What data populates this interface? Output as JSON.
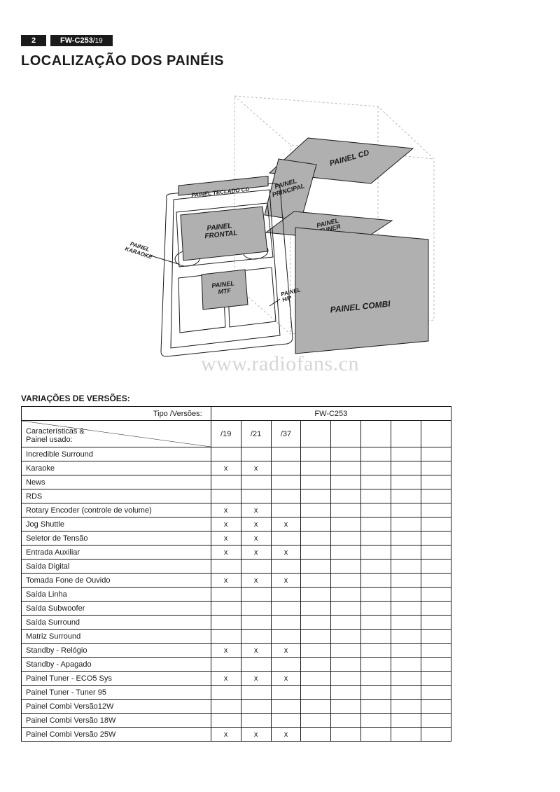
{
  "header": {
    "page_number": "2",
    "model": "FW-C253",
    "model_suffix": "/19"
  },
  "title": "LOCALIZAÇÃO DOS PAINÉIS",
  "watermark": "www.radiofans.cn",
  "diagram": {
    "type": "exploded-isometric",
    "outline_color": "#1a1a1a",
    "panel_fill": "#b0b0b0",
    "panel_stroke": "#1a1a1a",
    "labels": {
      "teclado": "PAINEL TECLADO CD",
      "principal": "PAINEL PRINCIPAL",
      "cd": "PAINEL CD",
      "frontal": "PAINEL FRONTAL",
      "tuner": "PAINEL TUNER",
      "karaoke": "PAINEL KARAOKE",
      "mtf": "PAINEL MTF",
      "hp": "PAINEL H/P",
      "combi": "PAINEL COMBI"
    }
  },
  "versions": {
    "subtitle": "VARIAÇÕES DE VERSÕES:",
    "tipo_label": "Tipo /Versões:",
    "caract_label_1": "Características &",
    "caract_label_2": "Painel usado:",
    "model_header": "FW-C253",
    "columns": [
      "/19",
      "/21",
      "/37",
      "",
      "",
      "",
      "",
      ""
    ],
    "rows": [
      {
        "label": "Incredible Surround",
        "v": [
          "",
          "",
          "",
          "",
          "",
          "",
          "",
          ""
        ]
      },
      {
        "label": "Karaoke",
        "v": [
          "x",
          "x",
          "",
          "",
          "",
          "",
          "",
          ""
        ]
      },
      {
        "label": "News",
        "v": [
          "",
          "",
          "",
          "",
          "",
          "",
          "",
          ""
        ]
      },
      {
        "label": "RDS",
        "v": [
          "",
          "",
          "",
          "",
          "",
          "",
          "",
          ""
        ]
      },
      {
        "label": "Rotary Encoder (controle de volume)",
        "v": [
          "x",
          "x",
          "",
          "",
          "",
          "",
          "",
          ""
        ]
      },
      {
        "label": "Jog Shuttle",
        "v": [
          "x",
          "x",
          "x",
          "",
          "",
          "",
          "",
          ""
        ]
      },
      {
        "label": "Seletor de Tensão",
        "v": [
          "x",
          "x",
          "",
          "",
          "",
          "",
          "",
          ""
        ]
      },
      {
        "label": "Entrada  Auxiliar",
        "v": [
          "x",
          "x",
          "x",
          "",
          "",
          "",
          "",
          ""
        ]
      },
      {
        "label": "Saída Digital",
        "v": [
          "",
          "",
          "",
          "",
          "",
          "",
          "",
          ""
        ]
      },
      {
        "label": "Tomada Fone de Ouvido",
        "v": [
          "x",
          "x",
          "x",
          "",
          "",
          "",
          "",
          ""
        ]
      },
      {
        "label": "Saída Linha",
        "v": [
          "",
          "",
          "",
          "",
          "",
          "",
          "",
          ""
        ]
      },
      {
        "label": "Saída Subwoofer",
        "v": [
          "",
          "",
          "",
          "",
          "",
          "",
          "",
          ""
        ]
      },
      {
        "label": "Saída Surround",
        "v": [
          "",
          "",
          "",
          "",
          "",
          "",
          "",
          ""
        ]
      },
      {
        "label": "Matriz Surround",
        "v": [
          "",
          "",
          "",
          "",
          "",
          "",
          "",
          ""
        ]
      },
      {
        "label": "Standby - Relógio",
        "v": [
          "x",
          "x",
          "x",
          "",
          "",
          "",
          "",
          ""
        ]
      },
      {
        "label": "Standby - Apagado",
        "v": [
          "",
          "",
          "",
          "",
          "",
          "",
          "",
          ""
        ]
      },
      {
        "label": "Painel Tuner  - ECO5 Sys",
        "v": [
          "x",
          "x",
          "x",
          "",
          "",
          "",
          "",
          ""
        ]
      },
      {
        "label": "Painel Tuner  - Tuner 95",
        "v": [
          "",
          "",
          "",
          "",
          "",
          "",
          "",
          ""
        ]
      },
      {
        "label": "Painel Combi Versão12W",
        "v": [
          "",
          "",
          "",
          "",
          "",
          "",
          "",
          ""
        ]
      },
      {
        "label": "Painel Combi Versão 18W",
        "v": [
          "",
          "",
          "",
          "",
          "",
          "",
          "",
          ""
        ]
      },
      {
        "label": "Painel Combi Versão 25W",
        "v": [
          "x",
          "x",
          "x",
          "",
          "",
          "",
          "",
          ""
        ]
      }
    ]
  }
}
